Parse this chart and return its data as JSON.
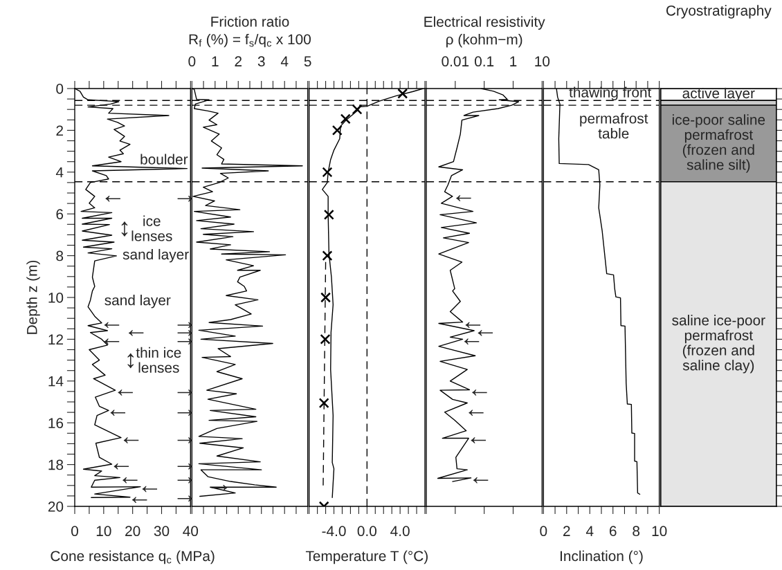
{
  "chart_data": [
    {
      "type": "line",
      "xlabel": "Cone resistance q$_{c}$ (MPa)",
      "ylabel": "Depth z (m)",
      "xlim": [
        0,
        40
      ],
      "xticks": [
        0,
        {
          "value": 5,
          "label": null
        },
        10,
        {
          "value": 15,
          "label": null
        },
        20,
        {
          "value": 25,
          "label": null
        },
        30,
        {
          "value": 35,
          "label": null
        },
        40
      ],
      "ylim": [
        20,
        0
      ],
      "yticks": [
        0,
        {
          "value": 0.5,
          "label": null
        },
        {
          "value": 1,
          "label": null
        },
        {
          "value": 1.5,
          "label": null
        },
        2,
        {
          "value": 2.5,
          "label": null
        },
        {
          "value": 3,
          "label": null
        },
        {
          "value": 3.5,
          "label": null
        },
        4,
        {
          "value": 4.5,
          "label": null
        },
        {
          "value": 5,
          "label": null
        },
        {
          "value": 5.5,
          "label": null
        },
        6,
        {
          "value": 6.5,
          "label": null
        },
        {
          "value": 7,
          "label": null
        },
        {
          "value": 7.5,
          "label": null
        },
        8,
        {
          "value": 8.5,
          "label": null
        },
        {
          "value": 9,
          "label": null
        },
        {
          "value": 9.5,
          "label": null
        },
        10,
        {
          "value": 10.5,
          "label": null
        },
        {
          "value": 11,
          "label": null
        },
        {
          "value": 11.5,
          "label": null
        },
        12,
        {
          "value": 12.5,
          "label": null
        },
        {
          "value": 13,
          "label": null
        },
        {
          "value": 13.5,
          "label": null
        },
        14,
        {
          "value": 14.5,
          "label": null
        },
        {
          "value": 15,
          "label": null
        },
        {
          "value": 15.5,
          "label": null
        },
        16,
        {
          "value": 16.5,
          "label": null
        },
        {
          "value": 17,
          "label": null
        },
        {
          "value": 17.5,
          "label": null
        },
        18,
        {
          "value": 18.5,
          "label": null
        },
        {
          "value": 19,
          "label": null
        },
        {
          "value": 19.5,
          "label": null
        },
        20
      ],
      "series": [
        {
          "color": "#000000",
          "x": [
            0,
            1.8,
            3,
            4.6,
            13.2,
            15.2,
            12.4,
            4.6,
            13.2,
            11.7,
            32.5,
            11.3,
            14.8,
            17.2,
            13.6,
            17.2,
            15.6,
            19.1,
            15.6,
            16.8,
            11.7,
            16,
            6.1,
            38.8,
            6.1,
            10.9,
            11.7,
            5.4,
            3.8,
            6.9,
            5,
            6.9,
            2.2,
            12.8,
            2.6,
            12.8,
            2.6,
            12,
            2.6,
            12.8,
            2.6,
            13.6,
            3,
            12.8,
            4.6,
            14.4,
            6.9,
            6.1,
            6.9,
            6.1,
            5.4,
            4.6,
            6.9,
            9.3,
            4.6,
            11.3,
            5.4,
            9.3,
            11.3,
            5,
            8.5,
            6.1,
            10.5,
            6.5,
            14,
            7.1,
            8.5,
            11.7,
            7.7,
            6.9,
            16,
            7.3,
            8.5,
            12.8,
            3,
            9.3,
            6.9,
            15.6,
            6.9,
            5.7,
            22.7,
            6.9,
            19.1,
            5.7
          ],
          "values": [
            0,
            0.13,
            0.41,
            0.54,
            0.61,
            0.63,
            0.74,
            0.88,
            0.96,
            1.18,
            1.29,
            1.46,
            1.62,
            1.79,
            1.96,
            2.29,
            2.51,
            2.67,
            2.95,
            3.12,
            3.28,
            3.5,
            3.7,
            3.83,
            3.94,
            4.17,
            4.33,
            4.5,
            4.83,
            5.16,
            5.49,
            5.71,
            5.88,
            5.94,
            6.21,
            6.21,
            6.49,
            6.51,
            6.82,
            7.02,
            7.26,
            7.35,
            7.59,
            7.67,
            7.87,
            8.01,
            8.25,
            9.03,
            9.47,
            9.69,
            10.13,
            10.45,
            10.9,
            11.22,
            11.35,
            11.59,
            11.68,
            12.0,
            12.28,
            12.5,
            13.0,
            13.21,
            13.72,
            13.89,
            14.44,
            14.77,
            15.21,
            15.41,
            15.65,
            16.1,
            16.71,
            16.98,
            17.65,
            17.98,
            18.22,
            18.31,
            18.53,
            18.62,
            18.75,
            19.08,
            19.06,
            19.41,
            19.56,
            19.58
          ]
        }
      ],
      "ref_lines": [
        {
          "axis": "y",
          "value": 0.57,
          "color": "#000000",
          "line_style": "dashed"
        },
        {
          "axis": "y",
          "value": 0.8,
          "color": "#000000",
          "line_style": "dashed"
        },
        {
          "axis": "y",
          "value": 4.46,
          "color": "#000000",
          "line_style": "dashed"
        }
      ],
      "annotations": [
        "boulder",
        "ice\nlenses",
        "↕",
        "sand layer",
        "sand layer",
        "thin ice\nlenses",
        "↕",
        "←",
        "←",
        "←",
        "←",
        "←",
        "←",
        "←",
        "←",
        "←",
        "←",
        "←"
      ]
    },
    {
      "type": "line",
      "xlabel": "Friction ratio\nR$_{f}$ (%) = f$_{s}$/q$_{c}$ x 100",
      "tick_labels": "x",
      "xlim": [
        0,
        5
      ],
      "xticks": [
        0,
        {
          "value": 0.5,
          "label": null
        },
        1,
        {
          "value": 1.5,
          "label": null
        },
        2,
        {
          "value": 2.5,
          "label": null
        },
        3,
        {
          "value": 3.5,
          "label": null
        },
        4,
        {
          "value": 4.5,
          "label": null
        },
        5
      ],
      "ylim": [
        20,
        0
      ],
      "series": [
        {
          "color": "#000000",
          "x": [
            0,
            0.1,
            0.2,
            0.74,
            0.15,
            0.1,
            0.69,
            1.13,
            0.74,
            1.08,
            0.49,
            1.18,
            0.84,
            1.28,
            1.08,
            1.38,
            1.28,
            4.77,
            0.44,
            3.3,
            1.23,
            1.57,
            1.18,
            0.49,
            0.89,
            0.05,
            0.98,
            0.59,
            2.07,
            0.1,
            1.67,
            0.2,
            1.82,
            0.39,
            2.66,
            0.49,
            1.77,
            0.2,
            1.67,
            0.79,
            3.35,
            1.28,
            4.04,
            1.48,
            2.66,
            1.97,
            2.95,
            2.07,
            1.97,
            2.26,
            2.36,
            1.48,
            2.85,
            1.87,
            2.56,
            1.67,
            0.74,
            3.05,
            0.3,
            1.87,
            0.39,
            3.49,
            1.13,
            1.67,
            0.44,
            1.87,
            1.08,
            2.17,
            0.64,
            1.92,
            0.69,
            2.76,
            0.79,
            2.76,
            0.74,
            2.81,
            1.08,
            0.3,
            2.17,
            0.34,
            2.22,
            1.08,
            2.95,
            0.3,
            3.0,
            0.39,
            0.69,
            1.67,
            2.71,
            3.64,
            0.79,
            1.87,
            0.34
          ],
          "values": [
            0,
            0.04,
            0.52,
            0.54,
            0.74,
            0.96,
            1.07,
            1.18,
            1.51,
            1.73,
            1.85,
            2.18,
            2.51,
            2.84,
            3.17,
            3.39,
            3.61,
            3.7,
            3.81,
            3.94,
            4.06,
            4.28,
            4.5,
            4.72,
            4.94,
            5.16,
            5.38,
            5.6,
            5.8,
            5.88,
            6.15,
            6.32,
            6.49,
            6.71,
            6.85,
            6.98,
            7.09,
            7.35,
            7.48,
            7.68,
            7.81,
            7.92,
            7.96,
            8.2,
            8.48,
            8.7,
            8.7,
            9.03,
            9.25,
            9.47,
            9.69,
            9.91,
            10.11,
            10.35,
            10.79,
            11.06,
            11.2,
            11.37,
            11.57,
            11.85,
            12.0,
            12.2,
            12.45,
            12.83,
            12.87,
            13.21,
            13.55,
            13.89,
            14.44,
            14.61,
            14.87,
            15.35,
            15.41,
            15.71,
            15.88,
            15.93,
            16.27,
            16.65,
            16.76,
            16.98,
            17.2,
            17.59,
            17.87,
            17.96,
            18.25,
            18.25,
            18.58,
            18.81,
            18.97,
            19.08,
            19.08,
            19.36,
            19.52
          ]
        }
      ],
      "ref_lines": [
        {
          "axis": "y",
          "value": 0.57,
          "color": "#000000",
          "line_style": "dashed"
        },
        {
          "axis": "y",
          "value": 0.8,
          "color": "#000000",
          "line_style": "dashed"
        },
        {
          "axis": "y",
          "value": 4.46,
          "color": "#000000",
          "line_style": "dashed"
        }
      ],
      "annotations": [
        "→",
        "→",
        "→",
        "→",
        "→",
        "→",
        "→",
        "→",
        "→",
        "→",
        "→"
      ]
    },
    {
      "type": "line",
      "xlabel": "Temperature T (°C)",
      "tick_labels": "x",
      "xlim": [
        -7,
        7
      ],
      "xticks": [
        {
          "value": -7,
          "label": null
        },
        {
          "value": -6,
          "label": null
        },
        {
          "value": -5,
          "label": null
        },
        {
          "value": -4,
          "label": "-4.0"
        },
        {
          "value": -3,
          "label": null
        },
        {
          "value": -2,
          "label": null
        },
        {
          "value": -1,
          "label": null
        },
        {
          "value": 0,
          "label": "0.0"
        },
        {
          "value": 1,
          "label": null
        },
        {
          "value": 2,
          "label": null
        },
        {
          "value": 3,
          "label": null
        },
        {
          "value": 4,
          "label": "4.0"
        },
        {
          "value": 5,
          "label": null
        },
        {
          "value": 6,
          "label": null
        },
        {
          "value": 7,
          "label": null
        }
      ],
      "ylim": [
        20,
        0
      ],
      "series": [
        {
          "color": "#000000",
          "x": [
            6.8,
            5.5,
            3.5,
            1.5,
            0,
            -0.8,
            -1.2,
            -2.5,
            -3.2,
            -3.3,
            -4.0,
            -4.4,
            -4.7,
            -4.8,
            -5.4,
            -4.7,
            -4.7,
            -4.6,
            -4.3,
            -4.1,
            -4.35,
            -4.4,
            -4.1,
            -4.2,
            -4.0,
            -4.2
          ],
          "values": [
            0,
            0.15,
            0.35,
            0.6,
            0.85,
            0.87,
            1.07,
            1.5,
            1.8,
            2.4,
            2.95,
            3.4,
            4.0,
            4.5,
            4.83,
            5.16,
            6.0,
            7.9,
            9.03,
            10.35,
            11.67,
            13.45,
            15.65,
            17.9,
            18.2,
            19.58
          ]
        },
        {
          "color": "#000000",
          "line_style": "dashed",
          "x": [
            -5.0,
            -5.3
          ],
          "values": [
            8.3,
            19.0
          ]
        },
        {
          "color": "#000000",
          "type": "scatter",
          "marker": "cross",
          "x": [
            4.3,
            -1.2,
            -2.6,
            -3.6,
            -4.8,
            -4.6,
            -4.8,
            -5.0,
            -5.05,
            -5.2,
            -5.2
          ],
          "values": [
            0.24,
            1.0,
            1.45,
            2.0,
            4.0,
            6.04,
            8.0,
            10.0,
            12.0,
            15.05,
            20.0
          ]
        }
      ],
      "ref_lines": [
        {
          "axis": "y",
          "value": 0.57,
          "color": "#000000",
          "line_style": "dashed"
        },
        {
          "axis": "y",
          "value": 0.8,
          "color": "#000000",
          "line_style": "dashed"
        },
        {
          "axis": "y",
          "value": 4.46,
          "color": "#000000",
          "line_style": "dashed"
        },
        {
          "axis": "x",
          "value": 0,
          "color": "#000000",
          "line_style": "dashed"
        }
      ]
    },
    {
      "type": "line",
      "log": "x",
      "xlabel": "Electrical resistivity\nρ (kohm−m)",
      "tick_labels": "x",
      "xlim": [
        0.001,
        10
      ],
      "xticks": [
        {
          "value": 0.001,
          "label": null
        },
        0.01,
        0.1,
        1,
        10
      ],
      "ylim": [
        20,
        0
      ],
      "series": [
        {
          "color": "#000000",
          "x": [
            0.078,
            0.21,
            0.44,
            0.63,
            0.33,
            1.55,
            0.89,
            0.3,
            0.041,
            0.02,
            0.065,
            0.017,
            0.015,
            0.0115,
            0.0087,
            0.0027,
            0.018,
            0.0074,
            0.0056,
            0.0043,
            0.008,
            0.0033,
            0.041,
            0.003,
            0.054,
            0.0033,
            0.031,
            0.0039,
            0.029,
            0.0027,
            0.017,
            0.0067,
            0.0096,
            0.0081,
            0.015,
            0.0067,
            0.018,
            0.0027,
            0.045,
            0.0067,
            0.018,
            0.0027,
            0.049,
            0.003,
            0.026,
            0.0067,
            0.031,
            0.003,
            0.0081,
            0.026,
            0.0043,
            0.0096,
            0.024,
            0.0036,
            0.029,
            0.0105,
            0.0115,
            0.026,
            0.0025,
            0.035,
            0.0081
          ],
          "values": [
            0,
            0.13,
            0.3,
            0.52,
            0.54,
            0.63,
            0.8,
            0.96,
            1.13,
            1.29,
            1.29,
            1.51,
            2.18,
            2.84,
            3.5,
            3.75,
            3.89,
            4.17,
            4.61,
            4.94,
            5.16,
            5.49,
            5.88,
            6.04,
            6.43,
            6.65,
            6.93,
            7.15,
            7.37,
            7.92,
            8.31,
            8.7,
            9.58,
            9.69,
            10.19,
            10.68,
            11.18,
            11.24,
            11.59,
            11.9,
            12.0,
            12.34,
            12.79,
            13.06,
            13.45,
            14.0,
            14.42,
            14.44,
            14.88,
            15.05,
            15.49,
            15.88,
            16.38,
            16.74,
            16.74,
            17.65,
            18.2,
            18.25,
            18.66,
            18.64,
            18.81
          ]
        }
      ],
      "ref_lines": [
        {
          "axis": "y",
          "value": 0.57,
          "color": "#000000",
          "line_style": "dashed"
        },
        {
          "axis": "y",
          "value": 0.8,
          "color": "#000000",
          "line_style": "dashed"
        },
        {
          "axis": "y",
          "value": 4.46,
          "color": "#000000",
          "line_style": "dashed"
        }
      ],
      "annotations": [
        "←",
        "←",
        "←",
        "←",
        "←",
        "←",
        "←",
        "←"
      ]
    },
    {
      "type": "line",
      "xlabel": "Inclination (°)",
      "tick_labels": "x",
      "xlim": [
        0,
        10
      ],
      "xticks": [
        0,
        {
          "value": 1,
          "label": null
        },
        2,
        {
          "value": 3,
          "label": null
        },
        4,
        {
          "value": 5,
          "label": null
        },
        6,
        {
          "value": 7,
          "label": null
        },
        8,
        {
          "value": 9,
          "label": null
        },
        10
      ],
      "ylim": [
        20,
        0
      ],
      "series": [
        {
          "color": "#000000",
          "x": [
            1.12,
            1.22,
            1.42,
            1.32,
            1.36,
            3.89,
            4.77,
            4.87,
            4.77,
            5.07,
            5.46,
            6.05,
            6.15,
            6.25,
            6.65,
            6.69,
            7.04,
            7.14,
            7.24,
            7.59,
            7.63,
            7.87,
            7.87,
            8.07,
            8.13,
            8.32
          ],
          "values": [
            0,
            0.41,
            0.74,
            2.4,
            3.59,
            3.64,
            3.89,
            4.61,
            5.71,
            6.82,
            8.86,
            8.92,
            9.58,
            9.97,
            10.02,
            11.35,
            11.37,
            14.11,
            15.1,
            15.12,
            16.49,
            16.51,
            17.83,
            17.86,
            19.36,
            19.42
          ]
        }
      ],
      "ref_lines": [
        {
          "axis": "y",
          "value": 0.57,
          "color": "#000000",
          "line_style": "dashed"
        },
        {
          "axis": "y",
          "value": 0.8,
          "color": "#000000",
          "line_style": "dashed"
        },
        {
          "axis": "y",
          "value": 4.46,
          "color": "#000000",
          "line_style": "dashed"
        }
      ],
      "annotations": [
        "thawing front",
        "permafrost\ntable"
      ]
    },
    {
      "type": "bar",
      "stacked": true,
      "title": "Cryostratigraphy",
      "tick_labels": false,
      "categories": [
        null
      ],
      "ylim": [
        20,
        0
      ],
      "yticks": [
        0,
        0.5,
        1,
        1.5,
        2,
        2.5,
        3,
        3.5,
        4,
        4.5,
        5,
        5.5,
        6,
        6.5,
        7,
        7.5,
        8,
        8.5,
        9,
        9.5,
        10,
        10.5,
        11,
        11.5,
        12,
        12.5,
        13,
        13.5,
        14,
        14.5,
        15,
        15.5,
        16,
        16.5,
        17,
        17.5,
        18,
        18.5,
        19,
        19.5,
        20
      ],
      "series": [
        {
          "name": "active layer",
          "color": "#ffffff",
          "values": [
            0.57
          ]
        },
        {
          "color": "#cccccc",
          "values": [
            0.23
          ]
        },
        {
          "name": "ice-poor saline\npermafrost\n(frozen and\nsaline silt)",
          "color": "#999999",
          "values": [
            3.66
          ]
        },
        {
          "name": "saline ice-poor\npermafrost\n(frozen and\nsaline clay)",
          "color": "#e5e5e5",
          "values": [
            15.54
          ]
        }
      ]
    }
  ]
}
